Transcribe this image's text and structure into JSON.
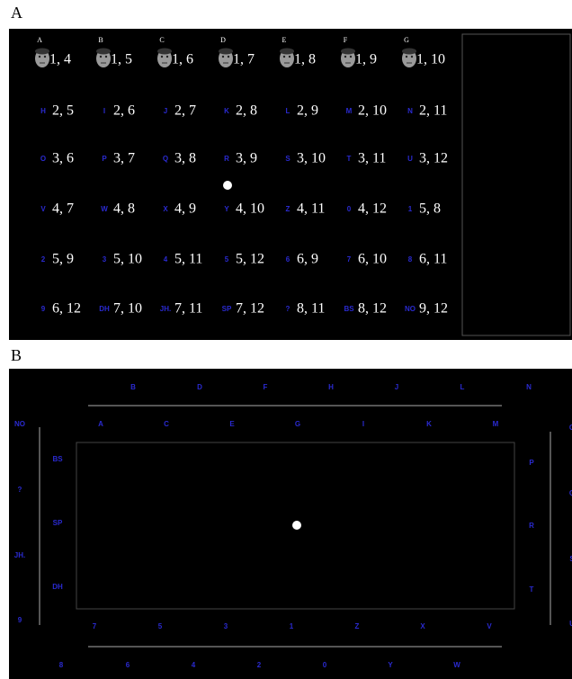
{
  "panel_a": {
    "label": "A",
    "face_row": [
      {
        "letter": "A",
        "pair": "1, 4"
      },
      {
        "letter": "B",
        "pair": "1, 5"
      },
      {
        "letter": "C",
        "pair": "1, 6"
      },
      {
        "letter": "D",
        "pair": "1, 7"
      },
      {
        "letter": "E",
        "pair": "1, 8"
      },
      {
        "letter": "F",
        "pair": "1, 9"
      },
      {
        "letter": "G",
        "pair": "1, 10"
      }
    ],
    "rows": [
      [
        {
          "letter": "H",
          "pair": "2, 5"
        },
        {
          "letter": "I",
          "pair": "2, 6"
        },
        {
          "letter": "J",
          "pair": "2, 7"
        },
        {
          "letter": "K",
          "pair": "2, 8"
        },
        {
          "letter": "L",
          "pair": "2, 9"
        },
        {
          "letter": "M",
          "pair": "2, 10"
        },
        {
          "letter": "N",
          "pair": "2, 11"
        }
      ],
      [
        {
          "letter": "O",
          "pair": "3, 6"
        },
        {
          "letter": "P",
          "pair": "3, 7"
        },
        {
          "letter": "Q",
          "pair": "3, 8"
        },
        {
          "letter": "R",
          "pair": "3, 9"
        },
        {
          "letter": "S",
          "pair": "3, 10"
        },
        {
          "letter": "T",
          "pair": "3, 11"
        },
        {
          "letter": "U",
          "pair": "3, 12"
        }
      ],
      [
        {
          "letter": "V",
          "pair": "4, 7"
        },
        {
          "letter": "W",
          "pair": "4, 8"
        },
        {
          "letter": "X",
          "pair": "4, 9"
        },
        {
          "letter": "Y",
          "pair": "4, 10"
        },
        {
          "letter": "Z",
          "pair": "4, 11"
        },
        {
          "letter": "0",
          "pair": "4, 12"
        },
        {
          "letter": "1",
          "pair": "5, 8"
        }
      ],
      [
        {
          "letter": "2",
          "pair": "5, 9"
        },
        {
          "letter": "3",
          "pair": "5, 10"
        },
        {
          "letter": "4",
          "pair": "5, 11"
        },
        {
          "letter": "5",
          "pair": "5, 12"
        },
        {
          "letter": "6",
          "pair": "6, 9"
        },
        {
          "letter": "7",
          "pair": "6, 10"
        },
        {
          "letter": "8",
          "pair": "6, 11"
        }
      ],
      [
        {
          "letter": "9",
          "pair": "6, 12"
        },
        {
          "letter": "DH",
          "pair": "7, 10"
        },
        {
          "letter": "JH.",
          "pair": "7, 11"
        },
        {
          "letter": "SP",
          "pair": "7, 12"
        },
        {
          "letter": "?",
          "pair": "8, 11"
        },
        {
          "letter": "BS",
          "pair": "8, 12"
        },
        {
          "letter": "NO",
          "pair": "9, 12"
        }
      ]
    ]
  },
  "panel_b": {
    "label": "B",
    "top_outer": [
      "B",
      "D",
      "F",
      "H",
      "J",
      "L",
      "N"
    ],
    "top_inner": [
      "A",
      "C",
      "E",
      "G",
      "I",
      "K",
      "M"
    ],
    "left_outer": [
      "NO",
      "?",
      "JH.",
      "9"
    ],
    "left_inner": [
      "BS",
      "SP",
      "DH"
    ],
    "right_inner": [
      "P",
      "R",
      "T"
    ],
    "right_outer": [
      "O",
      "Q",
      "S",
      "U"
    ],
    "bottom_inner": [
      "7",
      "5",
      "3",
      "1",
      "Z",
      "X",
      "V"
    ],
    "bottom_outer": [
      "8",
      "6",
      "4",
      "2",
      "0",
      "Y",
      "W"
    ]
  }
}
